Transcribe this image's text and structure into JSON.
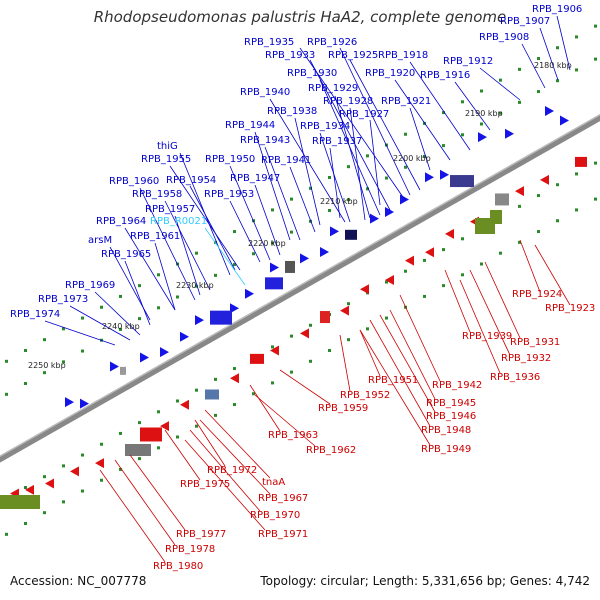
{
  "title": "Rhodopseudomonas palustris HaA2, complete genome",
  "footer": {
    "accession": "Accession: NC_007778",
    "topology": "Topology: circular; Length: 5,331,656 bp; Genes: 4,742"
  },
  "colors": {
    "forward_label": "#0000cc",
    "reverse_label": "#cc0000",
    "rna_label": "#33ccff",
    "backbone": "#888888"
  },
  "kbp_ticks": [
    "2180 kbp",
    "2190 kbp",
    "2200 kbp",
    "2210 kbp",
    "2220 kbp",
    "2230 kbp",
    "2240 kbp",
    "2250 kbp"
  ],
  "forward_labels": [
    "RPB_1906",
    "RPB_1907",
    "RPB_1908",
    "RPB_1935",
    "RPB_1926",
    "RPB_1933",
    "RPB_1925",
    "RPB_1918",
    "RPB_1912",
    "RPB_1930",
    "RPB_1920",
    "RPB_1916",
    "RPB_1929",
    "RPB_1940",
    "RPB_1928",
    "RPB_1921",
    "RPB_1938",
    "RPB_1927",
    "RPB_1944",
    "RPB_1934",
    "RPB_1943",
    "RPB_1937",
    "thiG",
    "RPB_1955",
    "RPB_1950",
    "RPB_1941",
    "RPB_1954",
    "RPB_1960",
    "RPB_1947",
    "RPB_1958",
    "RPB_1953",
    "RPB_1957",
    "RPB_1964",
    "RPB_1961",
    "arsM",
    "RPB_1965",
    "RPB_1969",
    "RPB_1973",
    "RPB_1974"
  ],
  "rna_labels": [
    "RPB_R0021"
  ],
  "reverse_labels": [
    "RPB_1924",
    "RPB_1923",
    "RPB_1931",
    "RPB_1939",
    "RPB_1932",
    "RPB_1936",
    "RPB_1951",
    "RPB_1942",
    "RPB_1952",
    "RPB_1945",
    "RPB_1959",
    "RPB_1946",
    "RPB_1948",
    "RPB_1963",
    "RPB_1949",
    "RPB_1962",
    "RPB_1972",
    "tnaA",
    "RPB_1975",
    "RPB_1967",
    "RPB_1970",
    "RPB_1971",
    "RPB_1977",
    "RPB_1978",
    "RPB_1980"
  ]
}
